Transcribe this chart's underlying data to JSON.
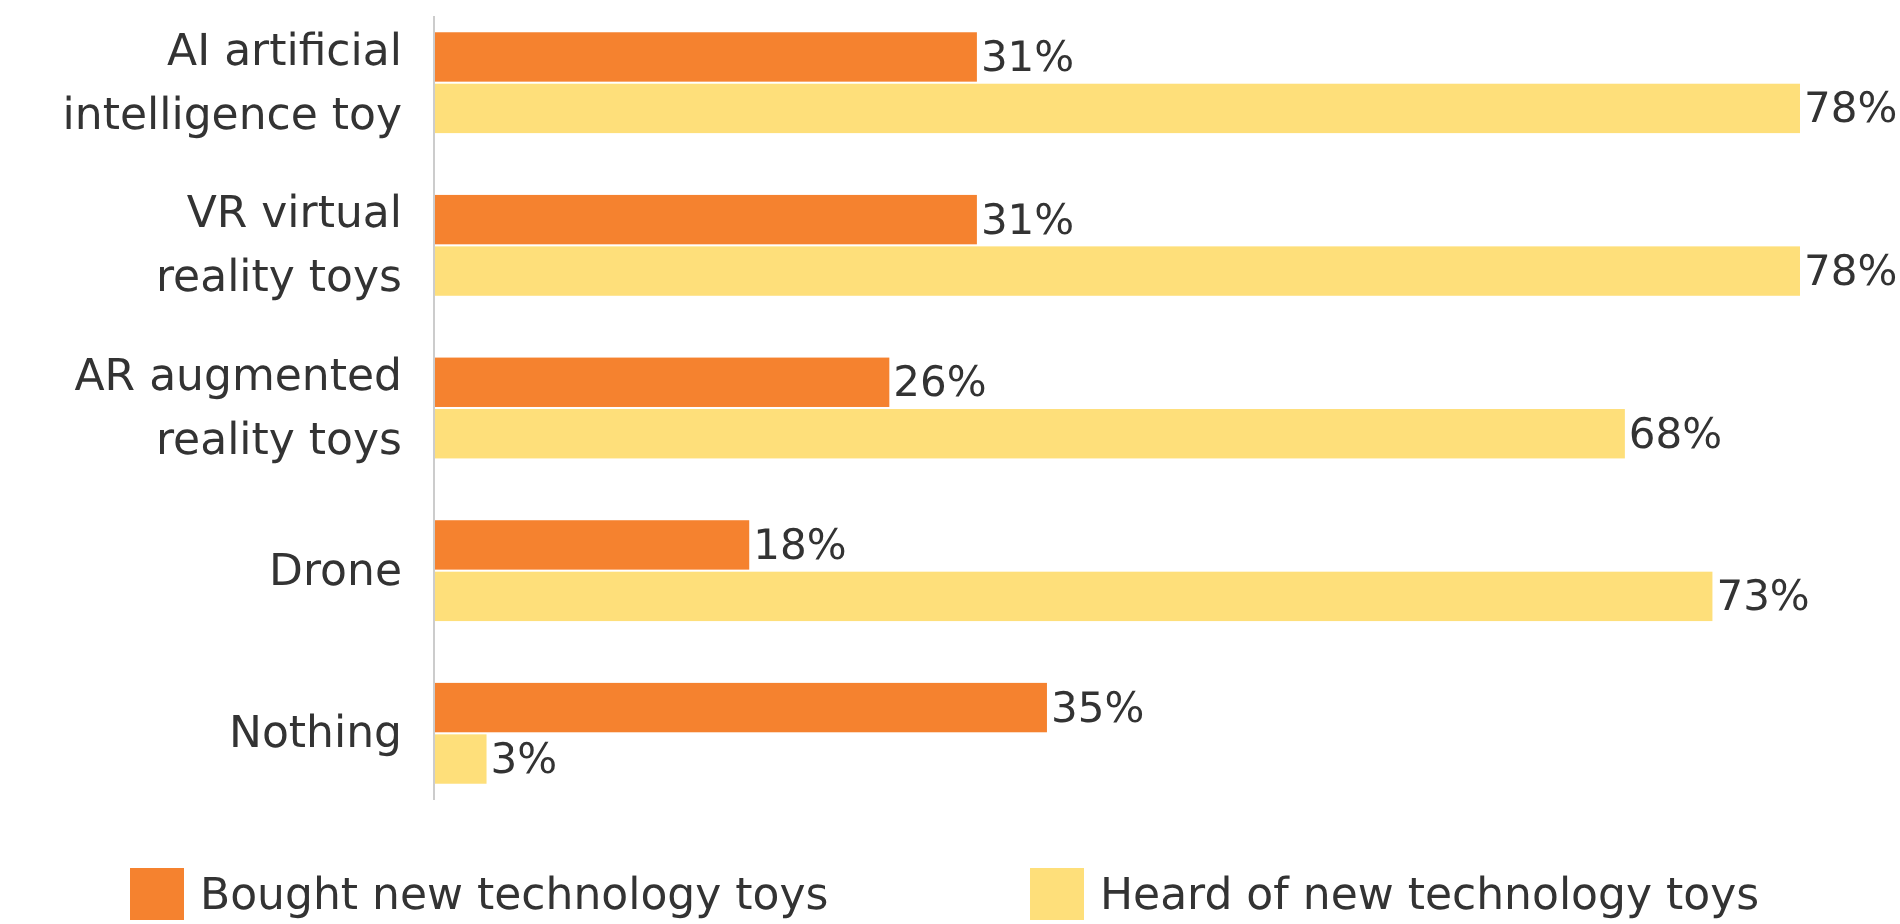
{
  "chart_data": {
    "type": "bar",
    "orientation": "horizontal",
    "categories": [
      "AI artificial intelligence toy",
      "VR virtual reality toys",
      "AR augmented reality toys",
      "Drone",
      "Nothing"
    ],
    "series": [
      {
        "name": "Bought new technology toys",
        "color": "#f5822f",
        "values": [
          31,
          31,
          26,
          18,
          35
        ],
        "value_labels": [
          "31%",
          "31%",
          "26%",
          "18%",
          "35%"
        ]
      },
      {
        "name": "Heard of new technology toys",
        "color": "#fedf7a",
        "values": [
          78,
          78,
          68,
          73,
          3
        ],
        "value_labels": [
          "78%",
          "78%",
          "68%",
          "73%",
          "3%"
        ]
      }
    ],
    "legend": "bottom"
  }
}
